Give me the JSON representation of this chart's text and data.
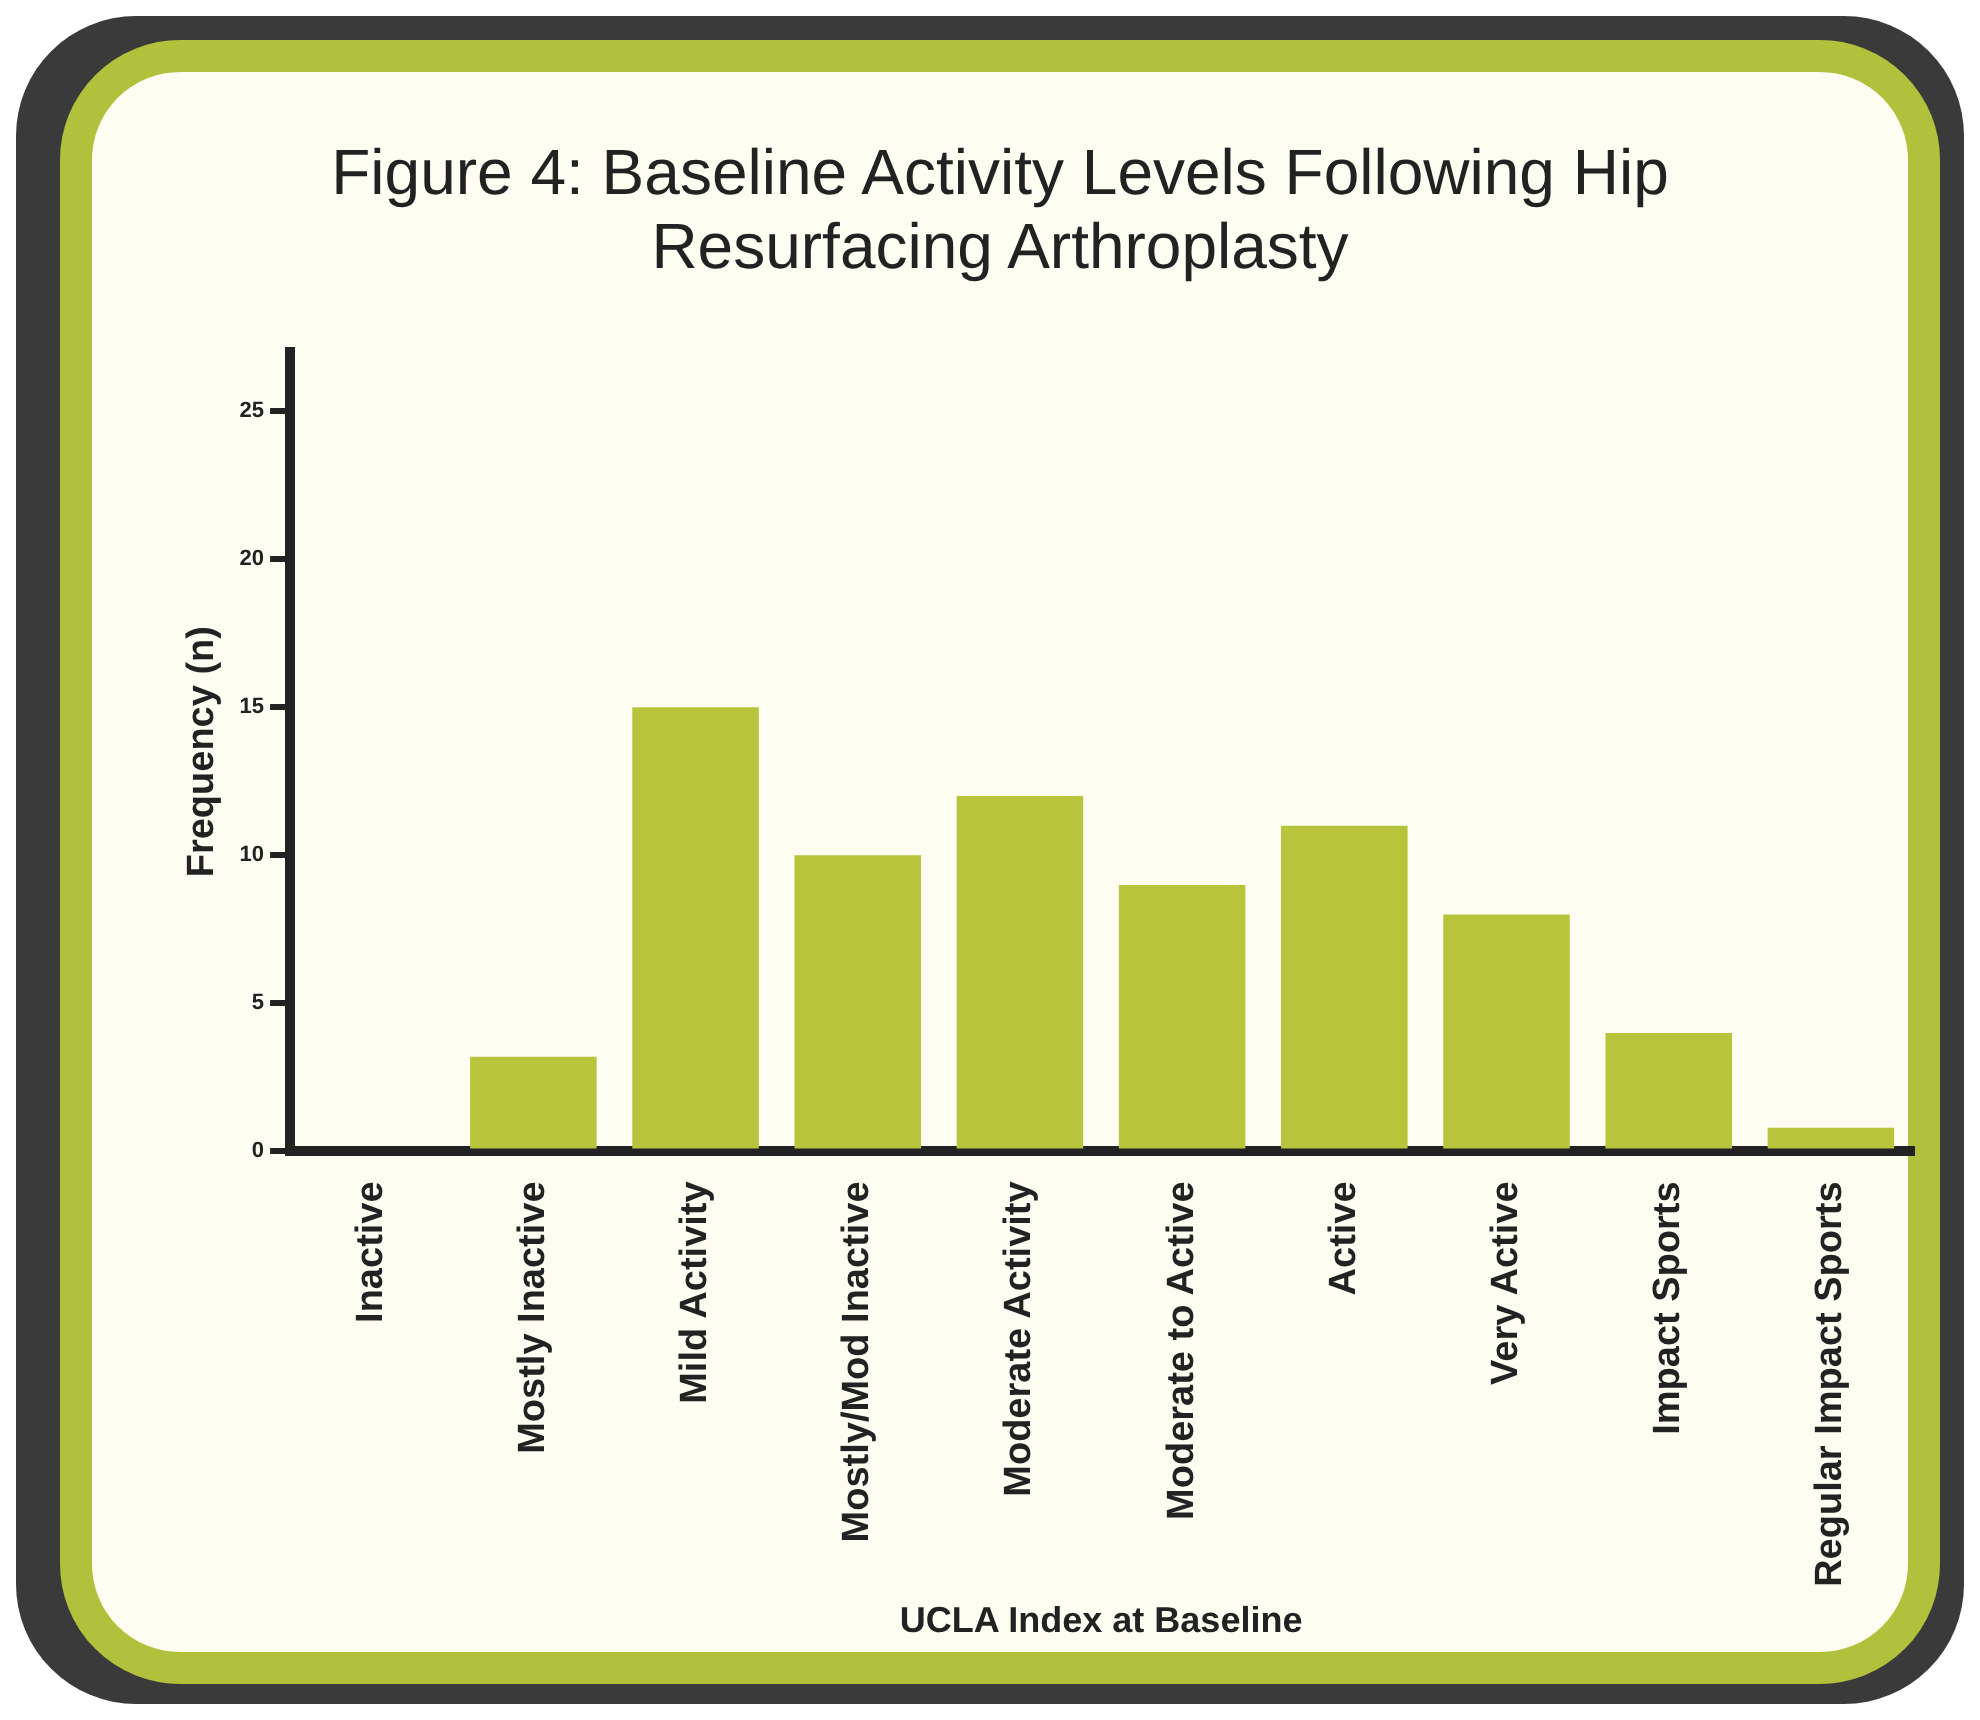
{
  "chart_data": {
    "type": "bar",
    "title": "Figure 4: Baseline Activity Levels Following Hip Resurfacing Arthroplasty",
    "xlabel": "UCLA Index at Baseline",
    "ylabel": "Frequency (n)",
    "categories": [
      "Inactive",
      "Mostly Inactive",
      "Mild Activity",
      "Mostly/Mod Inactive",
      "Moderate Activity",
      "Moderate to Active",
      "Active",
      "Very Active",
      "Impact Sports",
      "Regular Impact Sports"
    ],
    "values": [
      0,
      3.2,
      15,
      10,
      12,
      9,
      11,
      8,
      4,
      0.8
    ],
    "color": "#b7c43c",
    "ylim": [
      0,
      27
    ],
    "yticks": [
      0,
      5,
      10,
      15,
      20,
      25
    ],
    "grid": false,
    "legend": false
  }
}
